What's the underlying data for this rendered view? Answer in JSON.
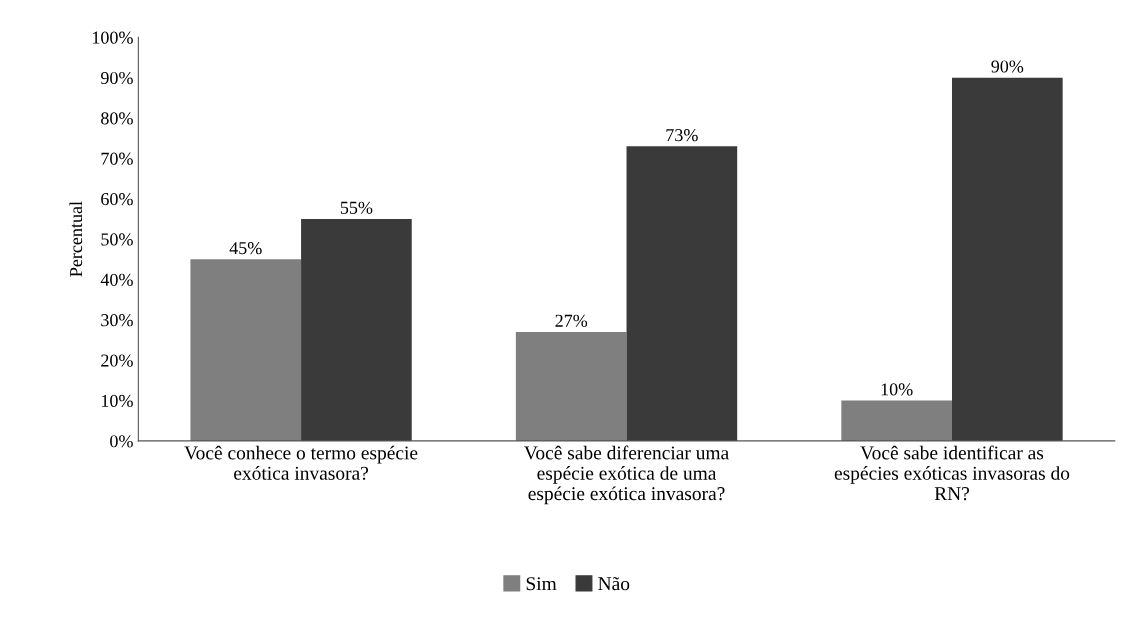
{
  "chart_data": {
    "type": "bar",
    "ylabel": "Percentual",
    "categories": [
      "Você conhece o termo espécie\nexótica invasora?",
      "Você sabe diferenciar uma\nespécie exótica de uma\nespécie exótica invasora?",
      "Você sabe identificar as\nespécies exóticas invasoras do\nRN?"
    ],
    "series": [
      {
        "name": "Sim",
        "color": "#7f7f7f",
        "values": [
          45,
          27,
          10
        ],
        "value_labels": [
          "45%",
          "27%",
          "10%"
        ]
      },
      {
        "name": "Não",
        "color": "#3a3a3a",
        "values": [
          55,
          73,
          90
        ],
        "value_labels": [
          "55%",
          "73%",
          "90%"
        ]
      }
    ],
    "ylim": [
      0,
      100
    ],
    "yticks": [
      {
        "value": 0,
        "label": "0%"
      },
      {
        "value": 10,
        "label": "10%"
      },
      {
        "value": 20,
        "label": "20%"
      },
      {
        "value": 30,
        "label": "30%"
      },
      {
        "value": 40,
        "label": "40%"
      },
      {
        "value": 50,
        "label": "50%"
      },
      {
        "value": 60,
        "label": "60%"
      },
      {
        "value": 70,
        "label": "70%"
      },
      {
        "value": 80,
        "label": "80%"
      },
      {
        "value": 90,
        "label": "90%"
      },
      {
        "value": 100,
        "label": "100%"
      }
    ],
    "grid": false,
    "legend": "bottom"
  }
}
